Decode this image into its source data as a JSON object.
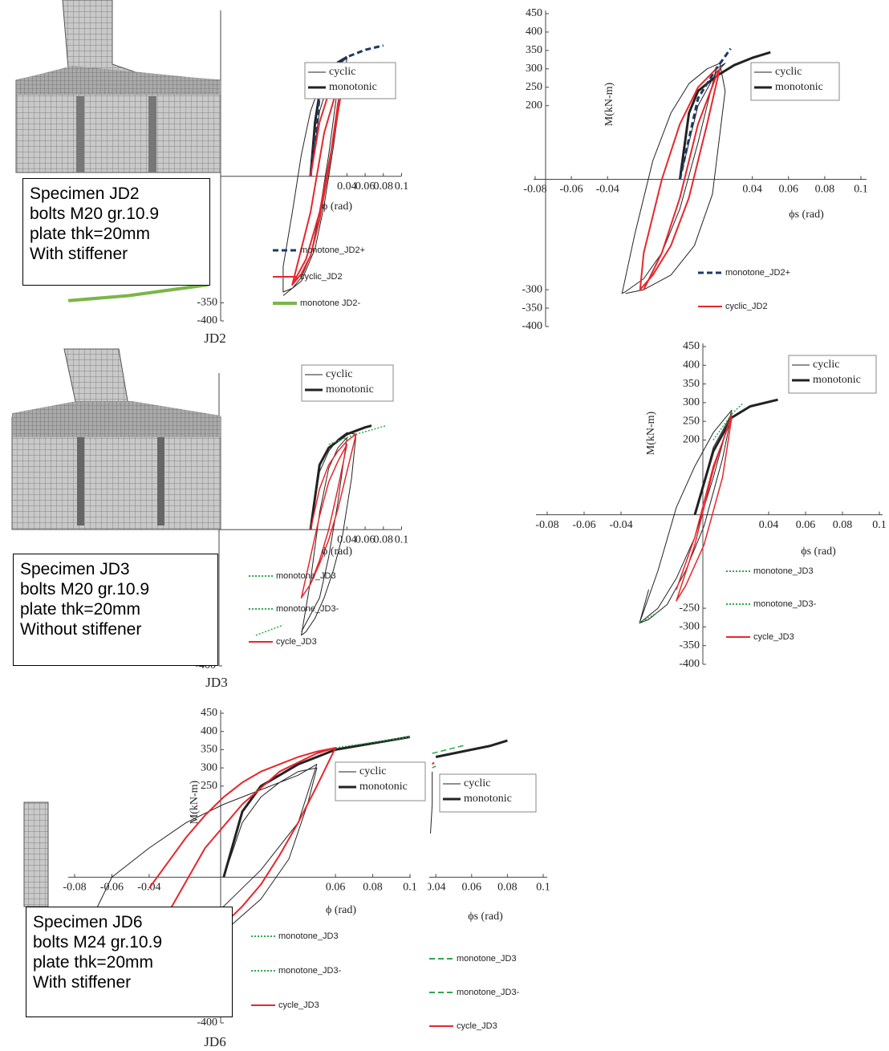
{
  "chart_data": [
    {
      "type": "line",
      "label": "JD2",
      "xlabel": "ϕ (rad)",
      "xlim": [
        -0.1,
        0.1
      ],
      "ylim": [
        -400,
        450
      ],
      "xticks": [
        0.04,
        0.06,
        0.08,
        0.1
      ],
      "yticks": [
        -350,
        -400
      ],
      "grid": false,
      "note": [
        "Specimen JD2",
        "bolts M20 gr.10.9",
        "plate thk=20mm",
        "With stiffener"
      ],
      "series": [
        {
          "name": "cyclic",
          "color": "#222222",
          "linewidth": 1,
          "dash": "solid",
          "x": [
            0,
            0.01,
            0.02,
            0.03,
            0.035,
            0.03,
            0.02,
            0.01,
            0,
            -0.01,
            -0.02,
            -0.03,
            -0.03,
            -0.02,
            -0.01,
            0,
            0.01,
            0.02,
            0.03,
            0.04,
            0.035,
            0.025,
            0.015,
            0.005,
            -0.01,
            -0.03
          ],
          "y": [
            0,
            180,
            260,
            300,
            320,
            250,
            60,
            -100,
            -220,
            -280,
            -310,
            -320,
            -250,
            -100,
            60,
            180,
            250,
            290,
            315,
            325,
            260,
            80,
            -80,
            -200,
            -290,
            -330
          ]
        },
        {
          "name": "monotonic",
          "color": "#222222",
          "linewidth": 3,
          "dash": "solid",
          "x": [
            0,
            0.005,
            0.01,
            0.02,
            0.03,
            0.04
          ],
          "y": [
            0,
            150,
            230,
            285,
            315,
            330
          ]
        }
      ],
      "overlay_series": [
        {
          "name": "monotone_JD2+",
          "color": "#1f3864",
          "linewidth": 3,
          "dash": "dashed",
          "x": [
            0,
            0.01,
            0.02,
            0.04,
            0.06,
            0.08
          ],
          "y": [
            0,
            220,
            290,
            330,
            350,
            362
          ]
        },
        {
          "name": "cyclic_JD2",
          "color": "#e8262b",
          "linewidth": 2,
          "dash": "solid",
          "x": [
            0,
            0.01,
            0.02,
            0.03,
            0.038,
            0.03,
            0.02,
            0.01,
            0,
            -0.01,
            -0.02,
            0,
            0.015,
            0.03,
            0.038,
            0.025,
            0.01,
            -0.005,
            -0.02
          ],
          "y": [
            0,
            150,
            230,
            280,
            300,
            200,
            20,
            -120,
            -220,
            -270,
            -300,
            -100,
            120,
            250,
            295,
            100,
            -100,
            -230,
            -300
          ]
        },
        {
          "name": "monotone JD2-",
          "color": "#7ab648",
          "linewidth": 4,
          "dash": "solid",
          "x": [
            -0.266,
            -0.2,
            -0.112
          ],
          "y": [
            -344,
            -330,
            -300
          ]
        }
      ]
    },
    {
      "type": "line",
      "xlabel": "ϕs (rad)",
      "ylabel": "M(kN-m)",
      "xlim": [
        -0.08,
        0.1
      ],
      "ylim": [
        -400,
        450
      ],
      "xticks": [
        -0.08,
        -0.06,
        -0.04,
        0.04,
        0.06,
        0.08,
        0.1
      ],
      "yticks": [
        450,
        400,
        350,
        300,
        250,
        200,
        -300,
        -350,
        -400
      ],
      "grid": false,
      "series": [
        {
          "name": "cyclic",
          "color": "#222222",
          "linewidth": 1,
          "dash": "solid",
          "x": [
            0,
            0.01,
            0.02,
            0.025,
            0.02,
            0.01,
            0,
            -0.01,
            -0.02,
            -0.03,
            -0.032,
            -0.025,
            -0.015,
            -0.005,
            0.005,
            0.015,
            0.022,
            0.025,
            0.018,
            0.008,
            -0.005,
            -0.02,
            -0.03
          ],
          "y": [
            0,
            200,
            290,
            315,
            300,
            100,
            -80,
            -200,
            -270,
            -305,
            -310,
            -150,
            50,
            180,
            260,
            300,
            315,
            240,
            -40,
            -180,
            -260,
            -300,
            -310
          ]
        },
        {
          "name": "monotonic",
          "color": "#222222",
          "linewidth": 3,
          "dash": "solid",
          "x": [
            0,
            0.005,
            0.01,
            0.02,
            0.03,
            0.04,
            0.05
          ],
          "y": [
            0,
            180,
            240,
            280,
            310,
            330,
            345
          ]
        }
      ],
      "overlay_series": [
        {
          "name": "monotone_JD2+",
          "color": "#1f3864",
          "linewidth": 3,
          "dash": "dashed",
          "x": [
            0,
            0.01,
            0.02,
            0.028
          ],
          "y": [
            0,
            220,
            300,
            355
          ]
        },
        {
          "name": "cyclic_JD2",
          "color": "#e8262b",
          "linewidth": 2,
          "dash": "solid",
          "x": [
            -0.02,
            -0.01,
            0,
            0.01,
            0.02,
            0.022,
            0.015,
            0.005,
            -0.005,
            -0.015,
            -0.022,
            -0.02,
            -0.01,
            0,
            0.01,
            0.02
          ],
          "y": [
            -300,
            -200,
            -50,
            150,
            280,
            300,
            150,
            -50,
            -180,
            -260,
            -300,
            -200,
            0,
            150,
            250,
            300
          ]
        }
      ]
    },
    {
      "type": "line",
      "label": "JD3",
      "xlabel": "ϕ (rad)",
      "xlim": [
        -0.1,
        0.1
      ],
      "ylim": [
        -400,
        450
      ],
      "xticks": [
        0.04,
        0.06,
        0.08,
        0.1
      ],
      "yticks": [
        -400
      ],
      "grid": false,
      "note": [
        "Specimen JD3",
        "bolts M20 gr.10.9",
        "plate thk=20mm",
        "Without stiffener"
      ],
      "series": [
        {
          "name": "cyclic",
          "color": "#222222",
          "linewidth": 1,
          "dash": "solid",
          "x": [
            0,
            0.01,
            0.02,
            0.03,
            0.04,
            0.05,
            0.045,
            0.035,
            0.025,
            0.015,
            0.005,
            -0.005,
            -0.01,
            0,
            0.01,
            0.02,
            0.03,
            0.04,
            0.03,
            0.02,
            0.01,
            -0.01
          ],
          "y": [
            0,
            170,
            230,
            265,
            285,
            280,
            150,
            -20,
            -120,
            -200,
            -260,
            -300,
            -310,
            -150,
            50,
            180,
            240,
            270,
            80,
            -80,
            -200,
            -300
          ]
        },
        {
          "name": "monotonic",
          "color": "#222222",
          "linewidth": 3,
          "dash": "solid",
          "x": [
            0,
            0.01,
            0.02,
            0.04,
            0.06,
            0.067
          ],
          "y": [
            0,
            190,
            240,
            280,
            300,
            305
          ]
        }
      ],
      "overlay_series": [
        {
          "name": "monotone_JD3",
          "color": "#2ea84a",
          "linewidth": 1.5,
          "dash": "dotted",
          "x": [
            0.02,
            0.05,
            0.083
          ],
          "y": [
            250,
            280,
            305
          ]
        },
        {
          "name": "monotone_JD3-",
          "color": "#2ea84a",
          "linewidth": 1.5,
          "dash": "dotted",
          "x": [
            -0.06,
            -0.03
          ],
          "y": [
            -310,
            -280
          ]
        },
        {
          "name": "cycle_JD3",
          "color": "#e8262b",
          "linewidth": 1.5,
          "dash": "solid",
          "x": [
            0,
            0.01,
            0.02,
            0.03,
            0.04,
            0.05,
            0.04,
            0.03,
            0.02,
            0.01,
            0,
            -0.01,
            0,
            0.01,
            0.02,
            0.03,
            0.04,
            0.03,
            0.02,
            0.01,
            0
          ],
          "y": [
            0,
            120,
            190,
            230,
            260,
            280,
            170,
            60,
            -30,
            -100,
            -160,
            -200,
            -80,
            40,
            140,
            200,
            250,
            120,
            0,
            -90,
            -160
          ]
        }
      ]
    },
    {
      "type": "line",
      "xlabel": "ϕs (rad)",
      "ylabel": "M(kN-m)",
      "xlim": [
        -0.08,
        0.1
      ],
      "ylim": [
        -400,
        450
      ],
      "xticks": [
        -0.08,
        -0.06,
        -0.04,
        0.04,
        0.06,
        0.08,
        0.1
      ],
      "yticks": [
        450,
        400,
        350,
        300,
        250,
        200,
        -250,
        -300,
        -350,
        -400
      ],
      "grid": false,
      "series": [
        {
          "name": "cyclic",
          "color": "#222222",
          "linewidth": 1,
          "dash": "solid",
          "x": [
            0,
            0.01,
            0.02,
            0.015,
            0.005,
            -0.005,
            -0.015,
            -0.025,
            -0.03,
            -0.02,
            -0.01,
            0,
            0.01,
            0.02,
            0.01,
            0,
            -0.01,
            -0.02,
            -0.03,
            -0.025
          ],
          "y": [
            0,
            180,
            270,
            150,
            -30,
            -150,
            -240,
            -280,
            -290,
            -150,
            20,
            130,
            220,
            280,
            100,
            -60,
            -170,
            -250,
            -290,
            -200
          ]
        },
        {
          "name": "monotonic",
          "color": "#222222",
          "linewidth": 3,
          "dash": "solid",
          "x": [
            0,
            0.01,
            0.02,
            0.03,
            0.045
          ],
          "y": [
            0,
            170,
            260,
            290,
            308
          ]
        }
      ],
      "overlay_series": [
        {
          "name": "monotone_JD3",
          "color": "#2ea84a",
          "linewidth": 1.5,
          "dash": "dotted",
          "x": [
            0.01,
            0.02,
            0.026
          ],
          "y": [
            200,
            270,
            298
          ]
        },
        {
          "name": "monotone_JD3-",
          "color": "#2ea84a",
          "linewidth": 1.5,
          "dash": "dotted",
          "x": [
            -0.03,
            -0.02
          ],
          "y": [
            -290,
            -260
          ]
        },
        {
          "name": "cycle_JD3",
          "color": "#e8262b",
          "linewidth": 1.5,
          "dash": "solid",
          "x": [
            -0.01,
            0,
            0.01,
            0.02,
            0.015,
            0.005,
            -0.005,
            -0.01,
            0,
            0.01,
            0.02
          ],
          "y": [
            -200,
            -60,
            130,
            260,
            100,
            -80,
            -190,
            -230,
            -80,
            120,
            270
          ]
        }
      ]
    },
    {
      "type": "line",
      "label": "JD6",
      "xlabel": "ϕ (rad)",
      "ylabel": "M(kN-m)",
      "xlim": [
        -0.08,
        0.1
      ],
      "ylim": [
        -400,
        450
      ],
      "xticks": [
        -0.08,
        -0.06,
        -0.04,
        0.06,
        0.08,
        0.1
      ],
      "yticks": [
        450,
        400,
        350,
        300,
        250,
        -400
      ],
      "grid": false,
      "note": [
        "Specimen JD6",
        "bolts M24 gr.10.9",
        "plate thk=20mm",
        "With stiffener"
      ],
      "series": [
        {
          "name": "cyclic",
          "color": "#222222",
          "linewidth": 1,
          "dash": "solid",
          "x": [
            0,
            0.01,
            0.02,
            0.03,
            0.04,
            0.05,
            0.045,
            0.035,
            0.02,
            0,
            -0.02,
            -0.04,
            -0.06,
            -0.08,
            -0.06,
            -0.04,
            -0.02,
            0,
            0.02,
            0.04,
            0.05,
            0.04,
            0.02,
            0,
            -0.02,
            -0.05
          ],
          "y": [
            0,
            150,
            220,
            260,
            290,
            300,
            200,
            50,
            -60,
            -150,
            -200,
            -220,
            -220,
            -210,
            0,
            80,
            150,
            200,
            240,
            280,
            310,
            150,
            20,
            -80,
            -160,
            -220
          ]
        },
        {
          "name": "monotonic",
          "color": "#222222",
          "linewidth": 3,
          "dash": "solid",
          "x": [
            0,
            0.01,
            0.02,
            0.04,
            0.06,
            0.1
          ],
          "y": [
            0,
            180,
            250,
            310,
            350,
            385
          ]
        }
      ],
      "overlay_series": [
        {
          "name": "monotone_JD3",
          "color": "#2ea84a",
          "linewidth": 1.5,
          "dash": "dotted",
          "x": [
            0.06,
            0.08,
            0.1
          ],
          "y": [
            355,
            370,
            385
          ]
        },
        {
          "name": "monotone_JD3-",
          "color": "#2ea84a",
          "linewidth": 1.5,
          "dash": "dotted",
          "x": [
            -0.02,
            -0.01
          ],
          "y": [
            -250,
            -240
          ]
        },
        {
          "name": "cycle_JD3",
          "color": "#e8262b",
          "linewidth": 2,
          "dash": "solid",
          "x": [
            -0.04,
            -0.03,
            -0.02,
            -0.01,
            0,
            0.01,
            0.02,
            0.03,
            0.04,
            0.05,
            0.06,
            0.05,
            0.04,
            0.03,
            0.02,
            0.01,
            0,
            -0.01,
            -0.02,
            -0.03,
            -0.04,
            -0.03,
            -0.01,
            0.01,
            0.03,
            0.05,
            0.06
          ],
          "y": [
            -30,
            40,
            110,
            170,
            220,
            260,
            290,
            310,
            330,
            345,
            355,
            250,
            150,
            60,
            -20,
            -80,
            -130,
            -170,
            -200,
            -220,
            -230,
            -100,
            80,
            200,
            290,
            340,
            355
          ]
        }
      ]
    },
    {
      "type": "line",
      "xlabel": "ϕs (rad)",
      "xlim": [
        0,
        0.1
      ],
      "ylim": [
        -400,
        450
      ],
      "xticks": [
        0.04,
        0.06,
        0.08,
        0.1
      ],
      "yticks": [],
      "grid": false,
      "series": [
        {
          "name": "cyclic",
          "color": "#222222",
          "linewidth": 1,
          "dash": "solid",
          "x": [
            0.038,
            0.038,
            0.037
          ],
          "y": [
            290,
            200,
            120
          ]
        },
        {
          "name": "monotonic",
          "color": "#222222",
          "linewidth": 3,
          "dash": "solid",
          "x": [
            0.04,
            0.06,
            0.07,
            0.08
          ],
          "y": [
            330,
            350,
            360,
            375
          ]
        }
      ],
      "overlay_series": [
        {
          "name": "monotone_JD3",
          "color": "#2ea84a",
          "linewidth": 1.5,
          "dash": "dashed",
          "x": [
            0.038,
            0.056
          ],
          "y": [
            340,
            362
          ]
        },
        {
          "name": "monotone_JD3-",
          "color": "#2ea84a",
          "linewidth": 1.5,
          "dash": "dashed",
          "x": [
            0.038,
            0.04
          ],
          "y": [
            300,
            305
          ]
        },
        {
          "name": "cycle_JD3",
          "color": "#e8262b",
          "linewidth": 2,
          "dash": "solid",
          "x": [
            0.038,
            0.039
          ],
          "y": [
            310,
            315
          ]
        }
      ]
    }
  ]
}
